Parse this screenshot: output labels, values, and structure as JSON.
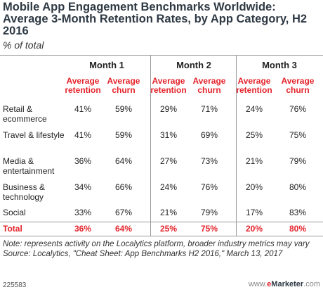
{
  "chart_data": {
    "type": "table",
    "title": "Mobile App Engagement Benchmarks Worldwide: Average 3-Month Retention Rates, by App Category, H2 2016",
    "subtitle": "% of total",
    "months": [
      "Month 1",
      "Month 2",
      "Month 3"
    ],
    "column_headers": [
      "Average retention",
      "Average churn"
    ],
    "rows": [
      {
        "category": "Retail & ecommerce",
        "values": [
          "41%",
          "59%",
          "29%",
          "71%",
          "24%",
          "76%"
        ]
      },
      {
        "category": "Travel & lifestyle",
        "values": [
          "41%",
          "59%",
          "31%",
          "69%",
          "25%",
          "75%"
        ]
      },
      {
        "category": "Media & entertainment",
        "values": [
          "36%",
          "64%",
          "27%",
          "73%",
          "21%",
          "79%"
        ]
      },
      {
        "category": "Business & technology",
        "values": [
          "34%",
          "66%",
          "24%",
          "76%",
          "20%",
          "80%"
        ]
      },
      {
        "category": "Social",
        "values": [
          "33%",
          "67%",
          "21%",
          "79%",
          "17%",
          "83%"
        ]
      }
    ],
    "total": {
      "label": "Total",
      "values": [
        "36%",
        "64%",
        "25%",
        "75%",
        "20%",
        "80%"
      ]
    }
  },
  "note": "Note: represents activity on the Localytics platform, broader industry metrics may vary",
  "source": "Source: Localytics, \"Cheat Sheet: App Benchmarks H2 2016,\" March 13, 2017",
  "footer_id": "225583",
  "brand": {
    "w": "www.",
    "e": "e",
    "m": "Marketer",
    "c": ".com"
  },
  "colors": {
    "accent": "#e5232b",
    "title": "#2e3944"
  }
}
